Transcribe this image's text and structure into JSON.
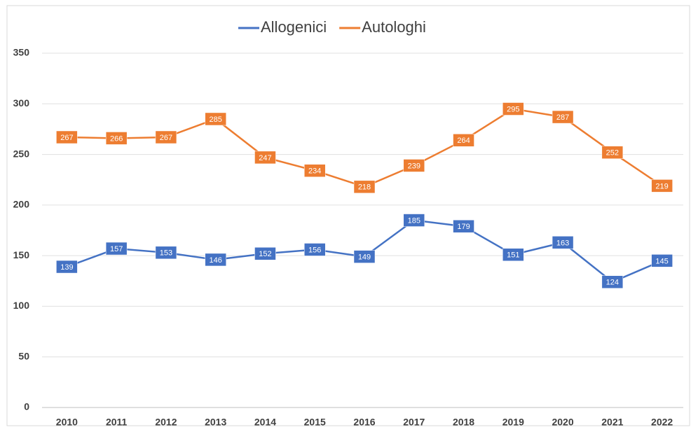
{
  "chart_data": {
    "type": "line",
    "categories": [
      "2010",
      "2011",
      "2012",
      "2013",
      "2014",
      "2015",
      "2016",
      "2017",
      "2018",
      "2019",
      "2020",
      "2021",
      "2022"
    ],
    "series": [
      {
        "name": "Allogenici",
        "color": "#4472c4",
        "values": [
          139,
          157,
          153,
          146,
          152,
          156,
          149,
          185,
          179,
          151,
          163,
          124,
          145
        ]
      },
      {
        "name": "Autologhi",
        "color": "#ed7d31",
        "values": [
          267,
          266,
          267,
          285,
          247,
          234,
          218,
          239,
          264,
          295,
          287,
          252,
          219
        ]
      }
    ],
    "ylim": [
      0,
      350
    ],
    "yticks": [
      0,
      50,
      100,
      150,
      200,
      250,
      300,
      350
    ],
    "grid": true,
    "legend": "top"
  }
}
